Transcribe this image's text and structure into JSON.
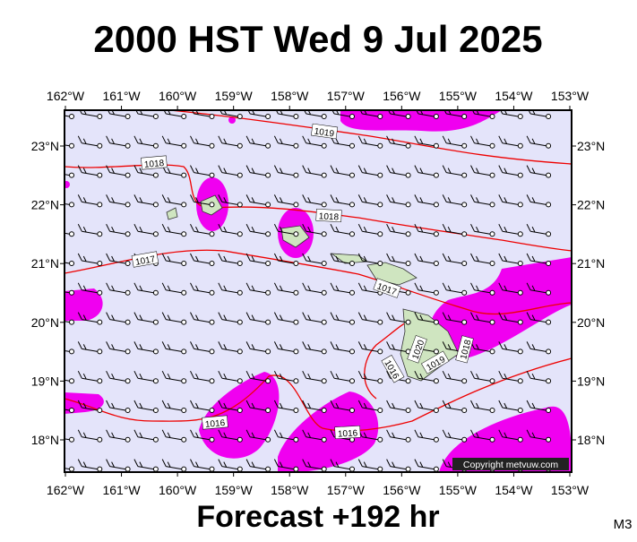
{
  "header": {
    "title": "2000 HST Wed 9 Jul 2025"
  },
  "longitude_labels": [
    "162°W",
    "161°W",
    "160°W",
    "159°W",
    "158°W",
    "157°W",
    "156°W",
    "155°W",
    "154°W",
    "153°W"
  ],
  "latitude_labels": [
    "23°N",
    "22°N",
    "21°N",
    "20°N",
    "19°N",
    "18°N"
  ],
  "isobar_labels": [
    "1019",
    "1018",
    "1018",
    "1017",
    "1017",
    "1016",
    "1016",
    "1020",
    "1019",
    "1018",
    "1016"
  ],
  "copyright": "Copyright metvuw.com",
  "footer": "Forecast +192 hr",
  "model": "M3"
}
